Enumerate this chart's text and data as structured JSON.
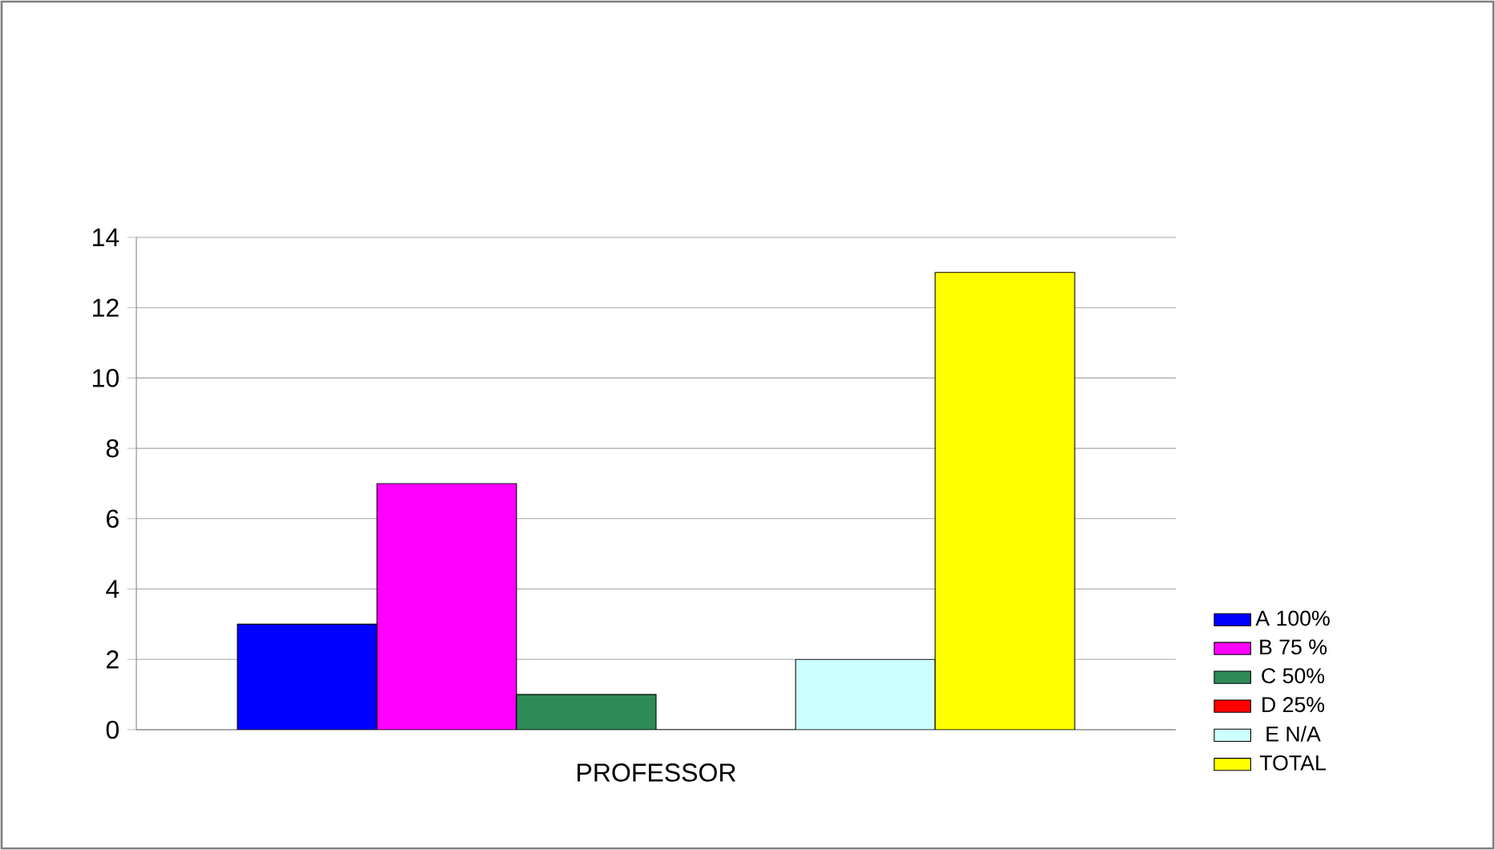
{
  "chart_data": {
    "type": "bar",
    "categories": [
      "PROFESSOR"
    ],
    "series": [
      {
        "name": "A 100%",
        "color": "#0000ff",
        "values": [
          3
        ]
      },
      {
        "name": "B 75 %",
        "color": "#ff00ff",
        "values": [
          7
        ]
      },
      {
        "name": "C 50%",
        "color": "#2e8b57",
        "values": [
          1
        ]
      },
      {
        "name": "D 25%",
        "color": "#ff0000",
        "values": [
          0
        ]
      },
      {
        "name": "E N/A",
        "color": "#ccffff",
        "values": [
          2
        ]
      },
      {
        "name": "TOTAL",
        "color": "#ffff00",
        "values": [
          13
        ]
      }
    ],
    "ylim": [
      0,
      14
    ],
    "yticks": [
      0,
      2,
      4,
      6,
      8,
      10,
      12,
      14
    ],
    "grid": "y",
    "legend": "right"
  }
}
